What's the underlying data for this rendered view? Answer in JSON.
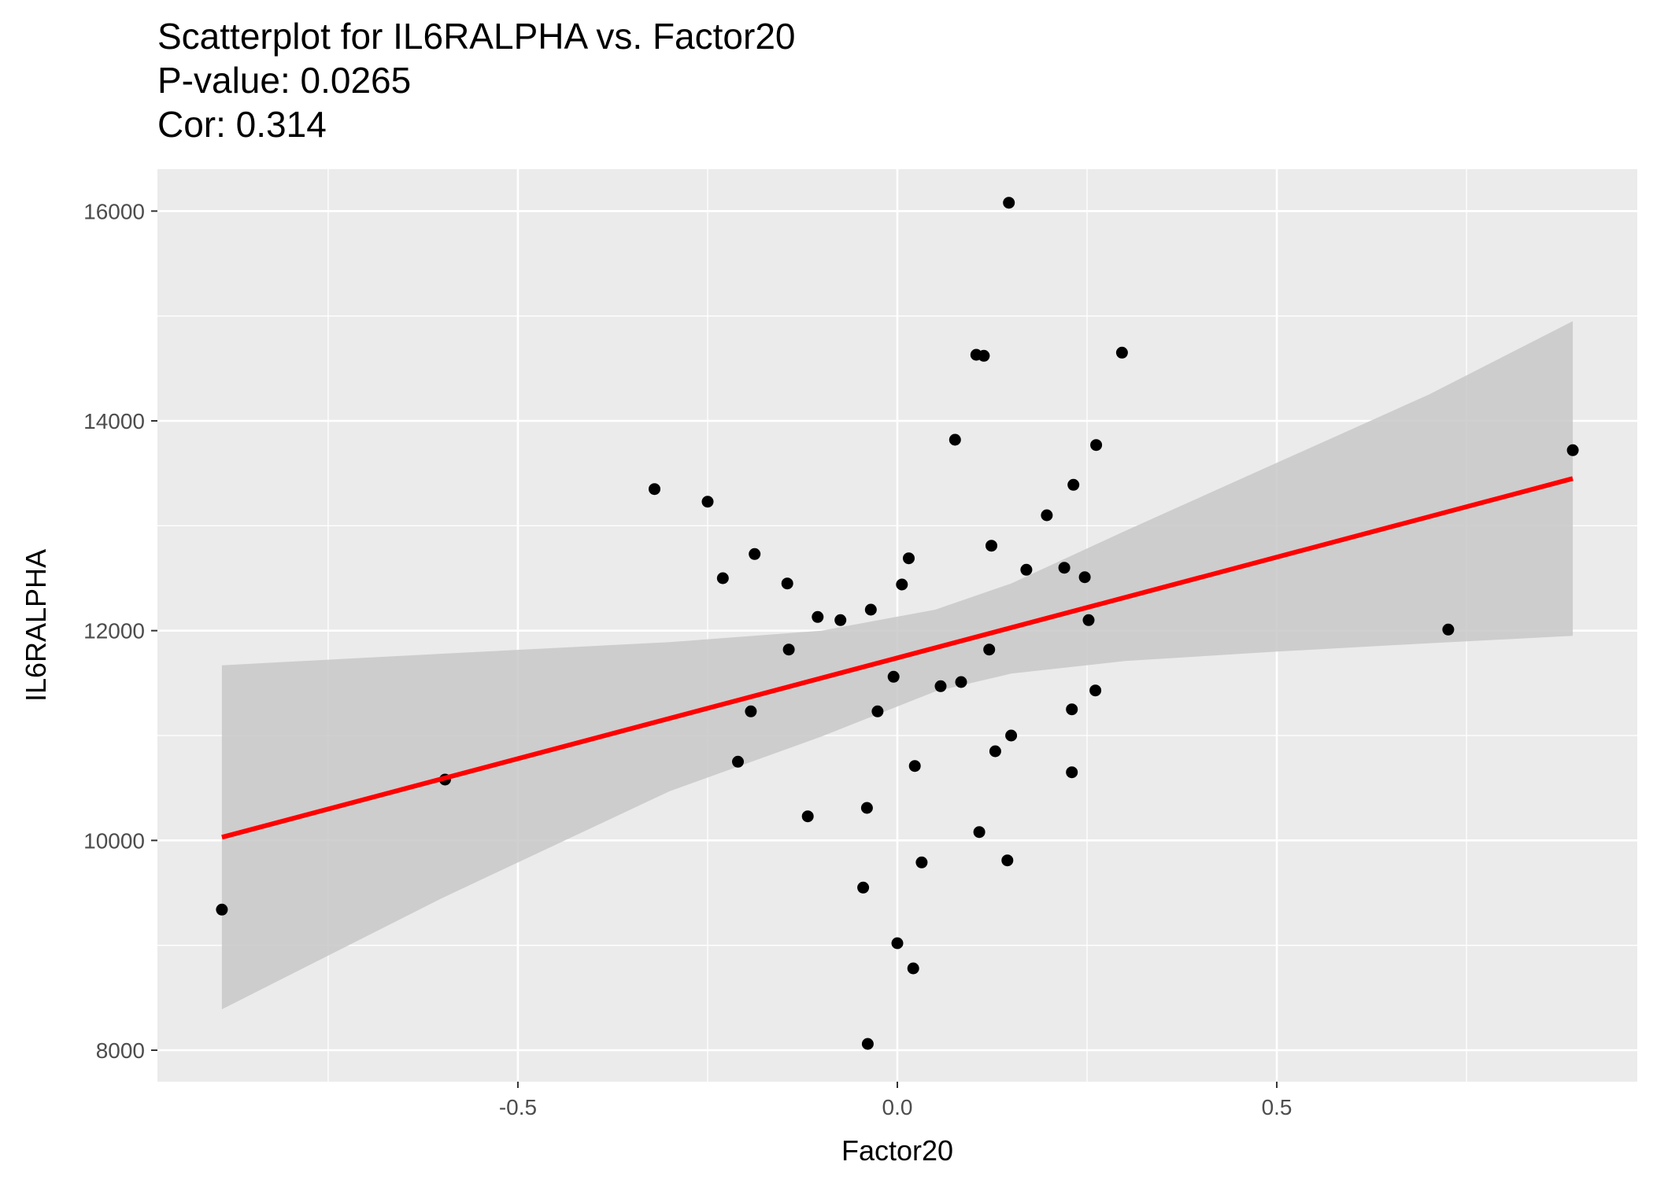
{
  "chart_data": {
    "type": "scatter",
    "title_lines": [
      "Scatterplot for IL6RALPHA vs. Factor20",
      "P-value: 0.0265",
      "Cor: 0.314"
    ],
    "xlabel": "Factor20",
    "ylabel": "IL6RALPHA",
    "xlim": [
      -0.975,
      0.975
    ],
    "ylim": [
      7700,
      16400
    ],
    "x_ticks": [
      -0.5,
      0.0,
      0.5
    ],
    "x_tick_labels": [
      "-0.5",
      "0.0",
      "0.5"
    ],
    "y_ticks": [
      8000,
      10000,
      12000,
      14000,
      16000
    ],
    "y_tick_labels": [
      "8000",
      "10000",
      "12000",
      "14000",
      "16000"
    ],
    "grid": true,
    "colors": {
      "panel": "#ebebeb",
      "grid": "#ffffff",
      "points": "#000000",
      "fit_line": "#ff0000",
      "confidence_band": "#c8c8c8"
    },
    "points": [
      {
        "x": 0.147,
        "y": 16080
      },
      {
        "x": 0.104,
        "y": 14630
      },
      {
        "x": 0.114,
        "y": 14620
      },
      {
        "x": 0.296,
        "y": 14650
      },
      {
        "x": 0.076,
        "y": 13820
      },
      {
        "x": 0.262,
        "y": 13770
      },
      {
        "x": 0.89,
        "y": 13720
      },
      {
        "x": -0.32,
        "y": 13350
      },
      {
        "x": -0.25,
        "y": 13230
      },
      {
        "x": 0.232,
        "y": 13390
      },
      {
        "x": 0.197,
        "y": 13100
      },
      {
        "x": 0.124,
        "y": 12810
      },
      {
        "x": -0.188,
        "y": 12730
      },
      {
        "x": 0.015,
        "y": 12690
      },
      {
        "x": 0.17,
        "y": 12580
      },
      {
        "x": 0.22,
        "y": 12600
      },
      {
        "x": 0.247,
        "y": 12510
      },
      {
        "x": -0.23,
        "y": 12500
      },
      {
        "x": -0.145,
        "y": 12450
      },
      {
        "x": 0.006,
        "y": 12440
      },
      {
        "x": -0.035,
        "y": 12200
      },
      {
        "x": -0.105,
        "y": 12130
      },
      {
        "x": -0.075,
        "y": 12100
      },
      {
        "x": 0.252,
        "y": 12100
      },
      {
        "x": 0.726,
        "y": 12010
      },
      {
        "x": -0.143,
        "y": 11820
      },
      {
        "x": 0.121,
        "y": 11820
      },
      {
        "x": -0.005,
        "y": 11560
      },
      {
        "x": 0.084,
        "y": 11510
      },
      {
        "x": 0.057,
        "y": 11470
      },
      {
        "x": 0.261,
        "y": 11430
      },
      {
        "x": -0.193,
        "y": 11230
      },
      {
        "x": -0.026,
        "y": 11230
      },
      {
        "x": 0.23,
        "y": 11250
      },
      {
        "x": 0.15,
        "y": 11000
      },
      {
        "x": 0.129,
        "y": 10850
      },
      {
        "x": -0.21,
        "y": 10750
      },
      {
        "x": 0.023,
        "y": 10710
      },
      {
        "x": 0.23,
        "y": 10650
      },
      {
        "x": -0.596,
        "y": 10580
      },
      {
        "x": -0.04,
        "y": 10310
      },
      {
        "x": -0.118,
        "y": 10230
      },
      {
        "x": 0.108,
        "y": 10080
      },
      {
        "x": 0.032,
        "y": 9790
      },
      {
        "x": 0.145,
        "y": 9810
      },
      {
        "x": -0.045,
        "y": 9550
      },
      {
        "x": -0.89,
        "y": 9340
      },
      {
        "x": 0.0,
        "y": 9020
      },
      {
        "x": 0.021,
        "y": 8780
      },
      {
        "x": -0.039,
        "y": 8060
      }
    ],
    "fit_line": {
      "x": [
        -0.89,
        0.89
      ],
      "y": [
        10030,
        13450
      ]
    },
    "confidence_band": {
      "x": [
        -0.89,
        -0.6,
        -0.3,
        -0.1,
        0.05,
        0.15,
        0.3,
        0.5,
        0.7,
        0.89
      ],
      "upper": [
        11670,
        11780,
        11890,
        12000,
        12200,
        12450,
        12950,
        13600,
        14250,
        14950
      ],
      "lower": [
        8390,
        9450,
        10470,
        10990,
        11420,
        11590,
        11710,
        11800,
        11880,
        11950
      ]
    }
  }
}
